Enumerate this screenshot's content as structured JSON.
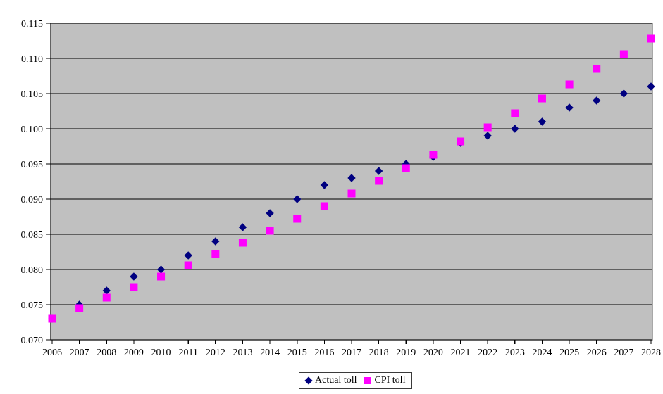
{
  "chart_data": {
    "type": "scatter",
    "title": "",
    "xlabel": "",
    "ylabel": "",
    "x": [
      2006,
      2007,
      2008,
      2009,
      2010,
      2011,
      2012,
      2013,
      2014,
      2015,
      2016,
      2017,
      2018,
      2019,
      2020,
      2021,
      2022,
      2023,
      2024,
      2025,
      2026,
      2027,
      2028
    ],
    "x_tick_labels": [
      "2006",
      "2007",
      "2008",
      "2009",
      "2010",
      "2011",
      "2012",
      "2013",
      "2014",
      "2015",
      "2016",
      "2017",
      "2018",
      "2019",
      "2020",
      "2021",
      "2022",
      "2023",
      "2024",
      "2025",
      "2026",
      "2027",
      "2028"
    ],
    "series": [
      {
        "name": "Actual toll",
        "marker": "diamond",
        "color": "#000080",
        "values": [
          0.073,
          0.075,
          0.077,
          0.079,
          0.08,
          0.082,
          0.084,
          0.086,
          0.088,
          0.09,
          0.092,
          0.093,
          0.094,
          0.095,
          0.096,
          0.098,
          0.099,
          0.1,
          0.101,
          0.103,
          0.104,
          0.105,
          0.106
        ]
      },
      {
        "name": "CPI toll",
        "marker": "square",
        "color": "#FF00FF",
        "values": [
          0.073,
          0.0745,
          0.076,
          0.0775,
          0.079,
          0.0806,
          0.0822,
          0.0838,
          0.0855,
          0.0872,
          0.089,
          0.0908,
          0.0926,
          0.0944,
          0.0963,
          0.0982,
          0.1002,
          0.1022,
          0.1043,
          0.1063,
          0.1085,
          0.1106,
          0.1128
        ]
      }
    ],
    "y_axis": {
      "min": 0.07,
      "max": 0.115,
      "tick_step": 0.005,
      "tick_labels": [
        "0.070",
        "0.075",
        "0.080",
        "0.085",
        "0.090",
        "0.095",
        "0.100",
        "0.105",
        "0.110",
        "0.115"
      ]
    },
    "grid": "horizontal",
    "legend_position": "bottom-center",
    "colors": {
      "plot_background": "#C0C0C0",
      "plot_border": "#8C8C8C",
      "gridline": "#000000",
      "axis": "#000000",
      "page_background": "#FFFFFF",
      "legend_border": "#3A3A3A"
    }
  }
}
